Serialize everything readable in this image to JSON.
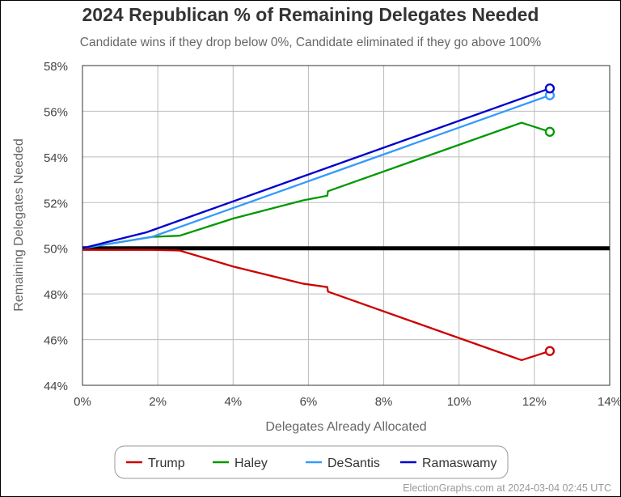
{
  "chart_data": {
    "type": "line",
    "title": "2024 Republican % of Remaining Delegates Needed",
    "subtitle": "Candidate wins if they drop below 0%, Candidate eliminated if they go above 100%",
    "xlabel": "Delegates Already Allocated",
    "ylabel": "Remaining Delegates Needed",
    "xlim": [
      0,
      14
    ],
    "ylim": [
      44,
      58
    ],
    "xticks": [
      "0%",
      "2%",
      "4%",
      "6%",
      "8%",
      "10%",
      "12%",
      "14%"
    ],
    "yticks": [
      "44%",
      "46%",
      "48%",
      "50%",
      "52%",
      "54%",
      "56%",
      "58%"
    ],
    "grid": true,
    "reference_line": 50,
    "legend_position": "bottom",
    "series": [
      {
        "name": "Trump",
        "color": "#cc0000",
        "x": [
          0,
          1.85,
          2.58,
          4.0,
          5.86,
          6.5,
          6.52,
          11.66,
          12.41
        ],
        "y": [
          49.93,
          49.93,
          49.9,
          49.2,
          48.45,
          48.3,
          48.1,
          45.1,
          45.5
        ]
      },
      {
        "name": "Haley",
        "color": "#009900",
        "x": [
          0,
          1.85,
          2.58,
          4.0,
          5.86,
          6.5,
          6.52,
          11.66,
          12.41
        ],
        "y": [
          50,
          50.5,
          50.55,
          51.3,
          52.1,
          52.3,
          52.5,
          55.5,
          55.1
        ]
      },
      {
        "name": "DeSantis",
        "color": "#3399ff",
        "x": [
          0,
          1.85,
          12.41
        ],
        "y": [
          50,
          50.5,
          56.7
        ]
      },
      {
        "name": "Ramaswamy",
        "color": "#0000cc",
        "x": [
          0,
          1.7,
          12.41
        ],
        "y": [
          50,
          50.7,
          57.0
        ]
      }
    ],
    "footer": "ElectionGraphs.com at 2024-03-04 02:45 UTC"
  }
}
